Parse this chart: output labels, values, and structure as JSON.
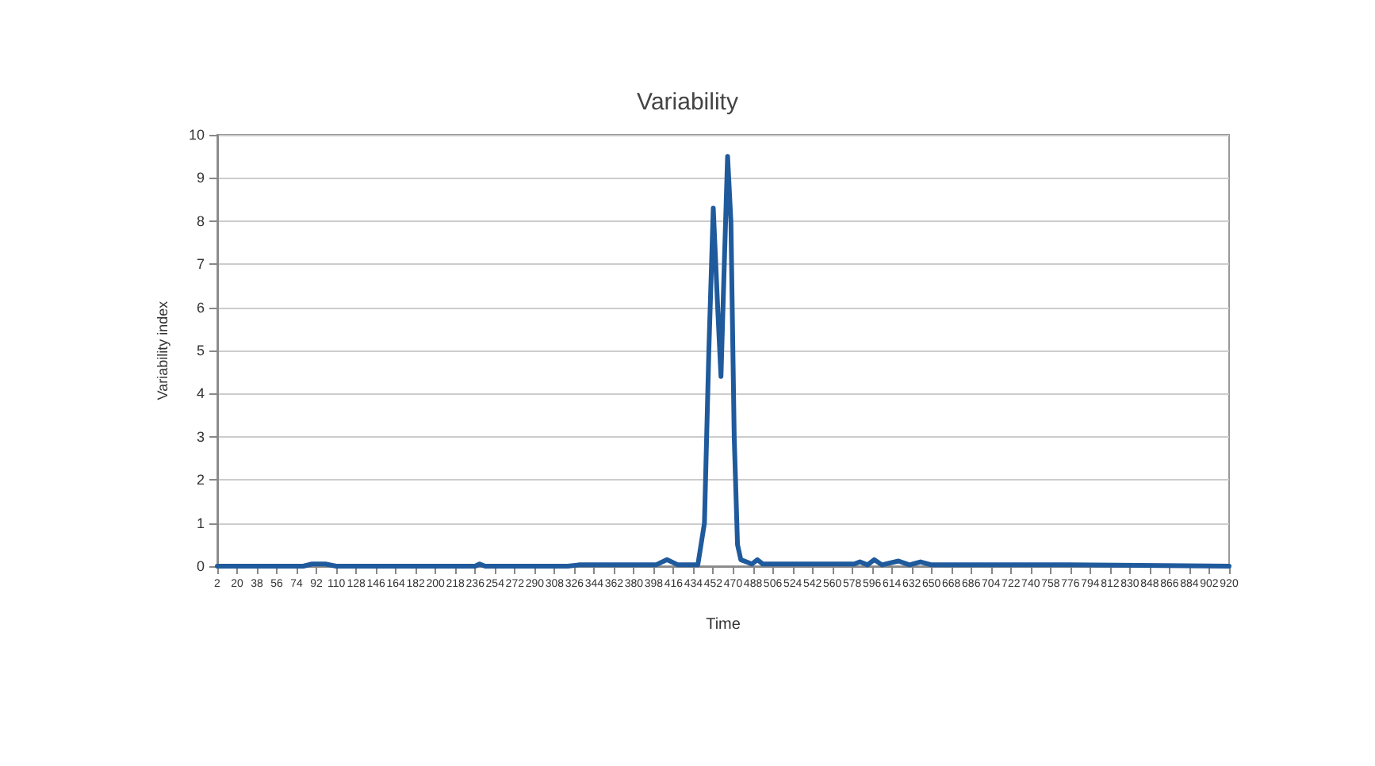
{
  "chart_data": {
    "type": "line",
    "title": "Variability",
    "xlabel": "Time",
    "ylabel": "Variability index",
    "xlim": [
      2,
      920
    ],
    "xticks": [
      2,
      20,
      38,
      56,
      74,
      92,
      110,
      128,
      146,
      164,
      182,
      200,
      218,
      236,
      254,
      272,
      290,
      308,
      326,
      344,
      362,
      380,
      398,
      416,
      434,
      452,
      470,
      488,
      506,
      524,
      542,
      560,
      578,
      596,
      614,
      632,
      650,
      668,
      686,
      704,
      722,
      740,
      758,
      776,
      794,
      812,
      830,
      848,
      866,
      884,
      902,
      920
    ],
    "ylim": [
      0,
      10
    ],
    "yticks": [
      0,
      1,
      2,
      3,
      4,
      5,
      6,
      7,
      8,
      9,
      10
    ],
    "grid": "y",
    "marker": "none",
    "line_style": "solid",
    "series": [
      {
        "color": "#1f5a9c",
        "x": [
          2,
          80,
          88,
          100,
          110,
          236,
          240,
          245,
          320,
          330,
          400,
          410,
          420,
          438,
          444,
          448,
          452,
          456,
          459,
          462,
          465,
          468,
          471,
          474,
          477,
          482,
          487,
          492,
          497,
          580,
          585,
          592,
          598,
          605,
          620,
          630,
          640,
          650,
          700,
          760,
          775,
          920
        ],
        "values": [
          0,
          0,
          0.05,
          0.05,
          0,
          0,
          0.05,
          0,
          0,
          0.03,
          0.03,
          0.15,
          0.03,
          0.03,
          1,
          5,
          8.3,
          6,
          4.4,
          7,
          9.5,
          8,
          3,
          0.5,
          0.15,
          0.1,
          0.05,
          0.15,
          0.05,
          0.05,
          0.1,
          0.03,
          0.15,
          0.03,
          0.12,
          0.03,
          0.1,
          0.03,
          0.03,
          0.03,
          0.03,
          0
        ]
      }
    ]
  }
}
